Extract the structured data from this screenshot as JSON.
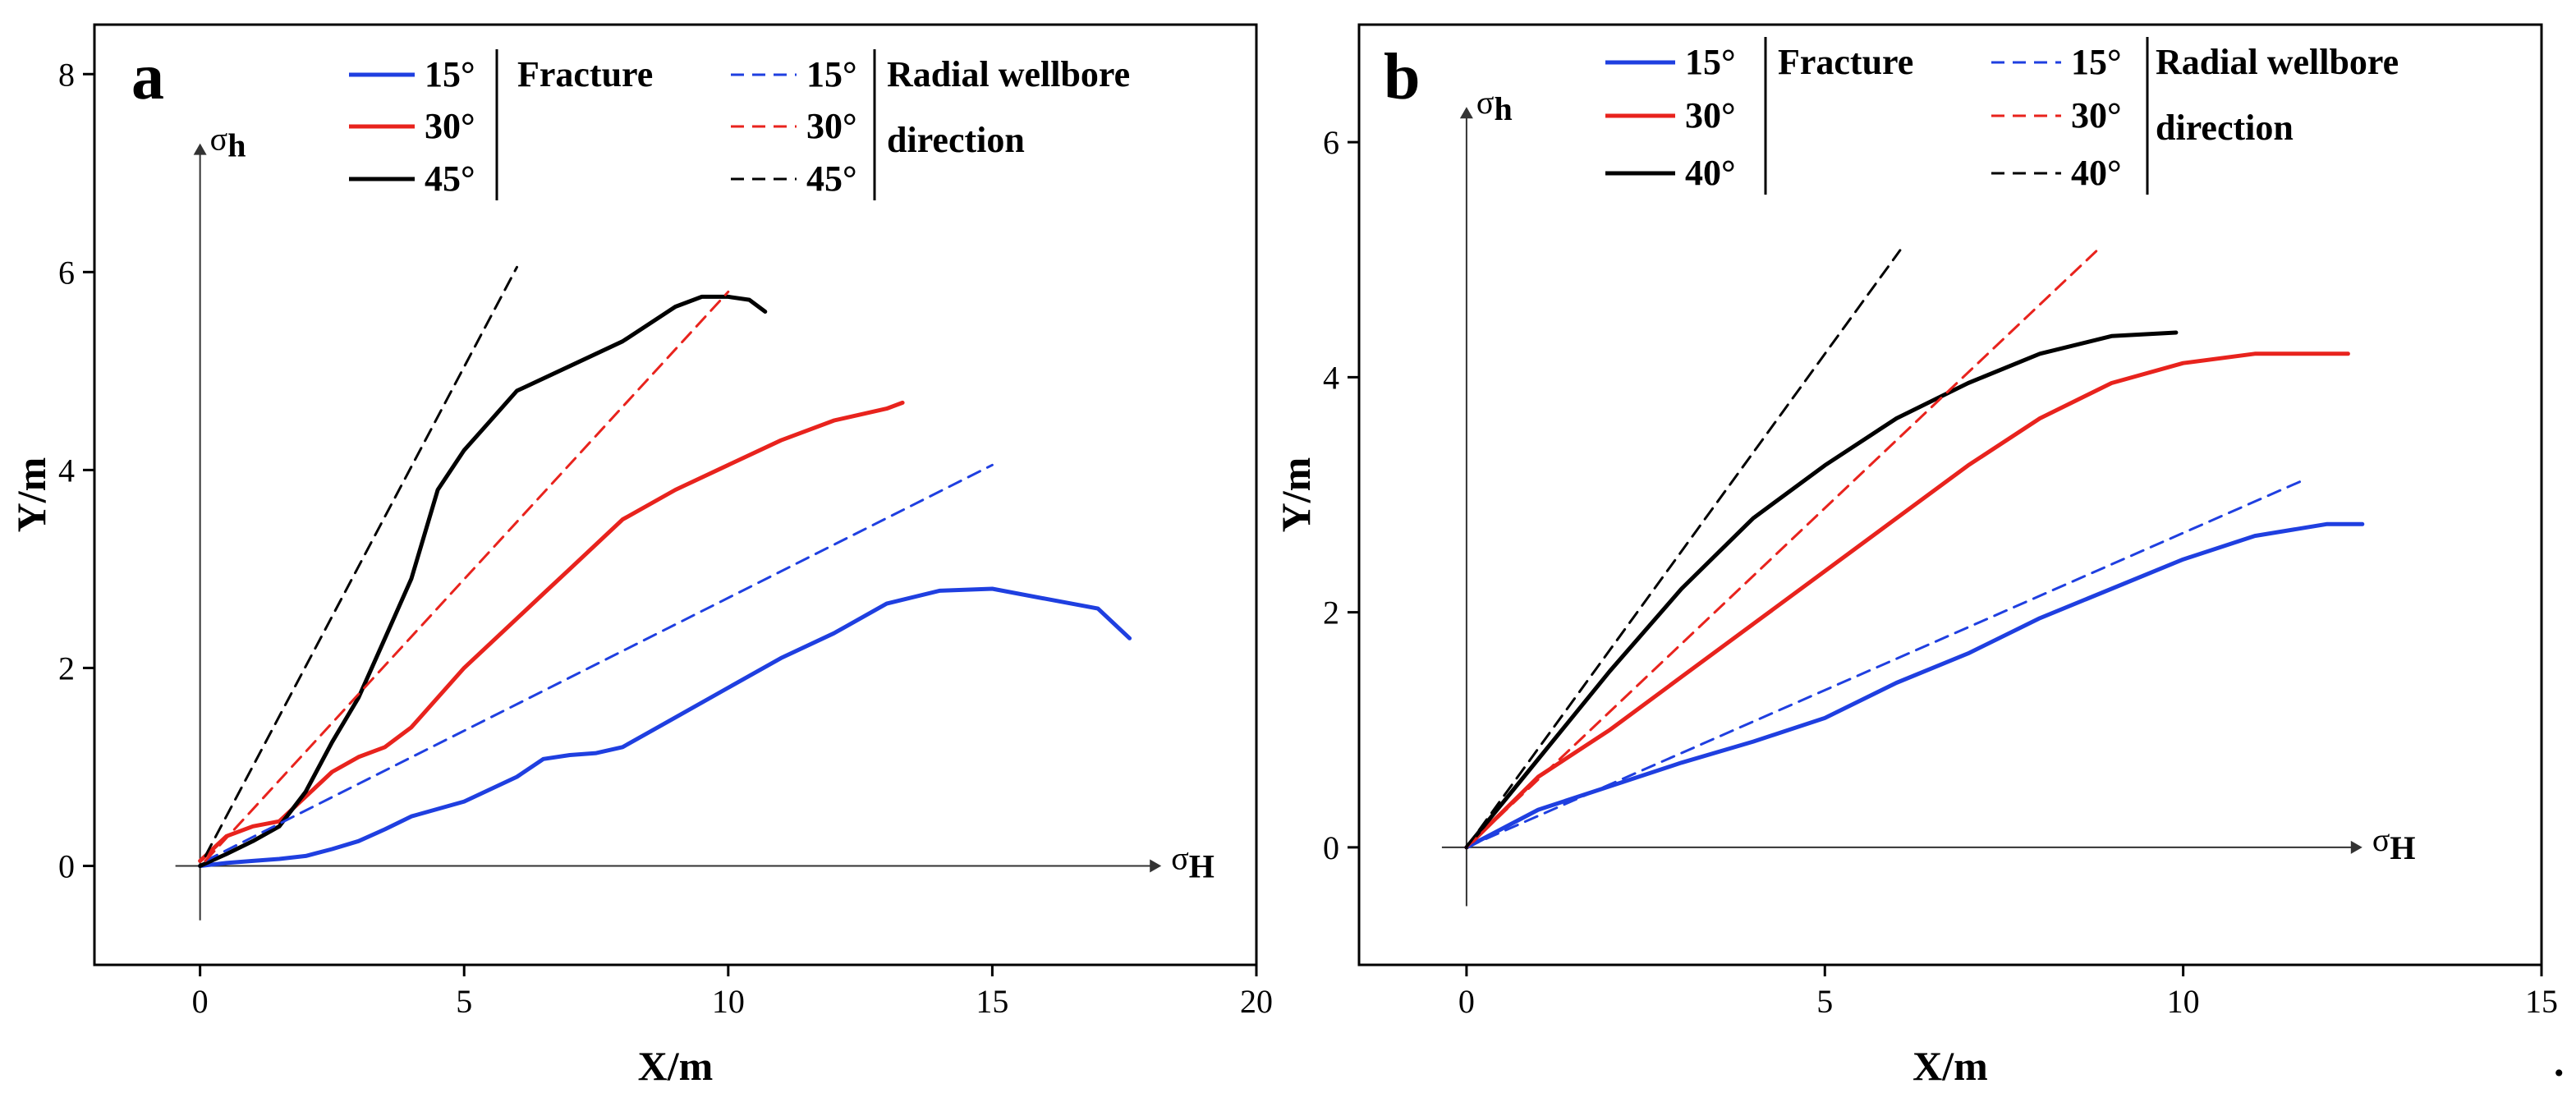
{
  "chart_data": [
    {
      "type": "line",
      "panel_label": "a",
      "xlabel": "X/m",
      "ylabel": "Y/m",
      "xlim": [
        -2,
        20
      ],
      "ylim": [
        -1,
        8.5
      ],
      "xticks": [
        0,
        5,
        10,
        15,
        20
      ],
      "yticks": [
        0,
        2,
        4,
        6,
        8
      ],
      "grid": false,
      "stress_axes": {
        "h_symbol": "σ",
        "h_sub": "h",
        "H_symbol": "σ",
        "H_sub": "H"
      },
      "legend": {
        "placement": "top",
        "group1_title": "Fracture",
        "group2_title_line1": "Radial wellbore",
        "group2_title_line2": "direction",
        "entries1": [
          "15°",
          "30°",
          "45°"
        ],
        "entries2": [
          "15°",
          "30°",
          "45°"
        ]
      },
      "series": [
        {
          "name": "Fracture 15°",
          "color": "#1f3fe0",
          "dash": false,
          "x": [
            0,
            0.5,
            1,
            1.5,
            2,
            2.5,
            3,
            3.5,
            4,
            5,
            6,
            6.5,
            7,
            7.5,
            8,
            9,
            10,
            11,
            12,
            13,
            14,
            15,
            16,
            17,
            17.6
          ],
          "y": [
            0,
            0.03,
            0.05,
            0.07,
            0.1,
            0.17,
            0.25,
            0.37,
            0.5,
            0.65,
            0.9,
            1.08,
            1.12,
            1.14,
            1.2,
            1.5,
            1.8,
            2.1,
            2.35,
            2.65,
            2.78,
            2.8,
            2.7,
            2.6,
            2.3
          ]
        },
        {
          "name": "Fracture 30°",
          "color": "#e8231d",
          "dash": false,
          "x": [
            0,
            0.5,
            1,
            1.5,
            2,
            2.5,
            3,
            3.5,
            4,
            5,
            6,
            6.5,
            7,
            8,
            9,
            10,
            11,
            12,
            13,
            13.3
          ],
          "y": [
            0.05,
            0.3,
            0.4,
            0.45,
            0.7,
            0.95,
            1.1,
            1.2,
            1.4,
            2.0,
            2.5,
            2.75,
            3.0,
            3.5,
            3.8,
            4.05,
            4.3,
            4.5,
            4.62,
            4.68
          ]
        },
        {
          "name": "Fracture 45°",
          "color": "#000000",
          "dash": false,
          "x": [
            0,
            0.5,
            1,
            1.5,
            2,
            2.5,
            3,
            3.5,
            4,
            4.5,
            5,
            5.5,
            6,
            7,
            8,
            9,
            9.5,
            10,
            10.4,
            10.7
          ],
          "y": [
            0,
            0.12,
            0.25,
            0.4,
            0.75,
            1.25,
            1.7,
            2.3,
            2.9,
            3.8,
            4.2,
            4.5,
            4.8,
            5.05,
            5.3,
            5.65,
            5.75,
            5.75,
            5.72,
            5.6
          ]
        },
        {
          "name": "Radial wellbore direction 15°",
          "color": "#1f3fe0",
          "dash": true,
          "x": [
            0.1,
            15
          ],
          "y": [
            0.05,
            4.05
          ]
        },
        {
          "name": "Radial wellbore direction 30°",
          "color": "#e8231d",
          "dash": true,
          "x": [
            0.1,
            10
          ],
          "y": [
            0.05,
            5.8
          ]
        },
        {
          "name": "Radial wellbore direction 45°",
          "color": "#000000",
          "dash": true,
          "x": [
            0.1,
            6
          ],
          "y": [
            0.1,
            6.05
          ]
        }
      ]
    },
    {
      "type": "line",
      "panel_label": "b",
      "xlabel": "X/m",
      "ylabel": "Y/m",
      "xlim": [
        -1.5,
        15
      ],
      "ylim": [
        -1,
        7
      ],
      "xticks": [
        0,
        5,
        10,
        15
      ],
      "yticks": [
        0,
        2,
        4,
        6
      ],
      "grid": false,
      "stress_axes": {
        "h_symbol": "σ",
        "h_sub": "h",
        "H_symbol": "σ",
        "H_sub": "H"
      },
      "legend": {
        "placement": "top",
        "group1_title": "Fracture",
        "group2_title_line1": "Radial wellbore",
        "group2_title_line2": "direction",
        "entries1": [
          "15°",
          "30°",
          "40°"
        ],
        "entries2": [
          "15°",
          "30°",
          "40°"
        ]
      },
      "series": [
        {
          "name": "Fracture 15°",
          "color": "#1f3fe0",
          "dash": false,
          "x": [
            0,
            1,
            2,
            3,
            4,
            5,
            6,
            7,
            8,
            9,
            10,
            11,
            12,
            12.5
          ],
          "y": [
            0,
            0.32,
            0.52,
            0.72,
            0.9,
            1.1,
            1.4,
            1.65,
            1.95,
            2.2,
            2.45,
            2.65,
            2.75,
            2.75
          ]
        },
        {
          "name": "Fracture 30°",
          "color": "#e8231d",
          "dash": false,
          "x": [
            0,
            1,
            2,
            3,
            4,
            5,
            6,
            7,
            8,
            9,
            10,
            11,
            12,
            12.3
          ],
          "y": [
            0,
            0.6,
            1.0,
            1.45,
            1.9,
            2.35,
            2.8,
            3.25,
            3.65,
            3.95,
            4.12,
            4.2,
            4.2,
            4.2
          ]
        },
        {
          "name": "Fracture 40°",
          "color": "#000000",
          "dash": false,
          "x": [
            0,
            1,
            2,
            3,
            4,
            5,
            6,
            7,
            8,
            9,
            9.9
          ],
          "y": [
            0,
            0.75,
            1.5,
            2.2,
            2.8,
            3.25,
            3.65,
            3.95,
            4.2,
            4.35,
            4.38
          ]
        },
        {
          "name": "Radial wellbore direction 15°",
          "color": "#1f3fe0",
          "dash": true,
          "x": [
            0,
            11.7
          ],
          "y": [
            0,
            3.13
          ]
        },
        {
          "name": "Radial wellbore direction 30°",
          "color": "#e8231d",
          "dash": true,
          "x": [
            0,
            8.8
          ],
          "y": [
            0,
            5.08
          ]
        },
        {
          "name": "Radial wellbore direction 40°",
          "color": "#000000",
          "dash": true,
          "x": [
            0,
            6.05
          ],
          "y": [
            0,
            5.08
          ]
        }
      ]
    }
  ],
  "trailing_mark": "."
}
